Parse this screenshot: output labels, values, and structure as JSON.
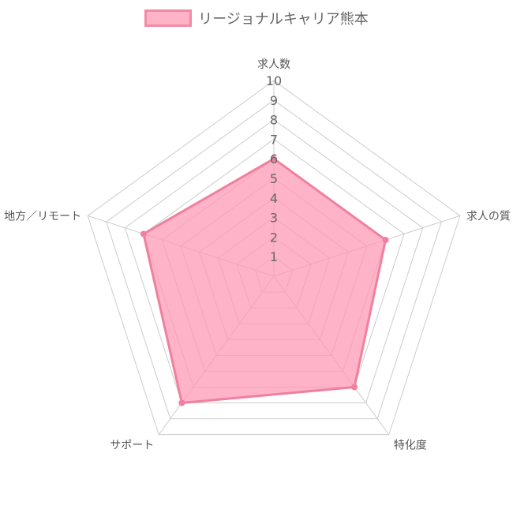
{
  "chart_data": {
    "type": "radar",
    "series": [
      {
        "name": "リージョナルキャリア熊本",
        "values": [
          6,
          6,
          7,
          8,
          7
        ]
      }
    ],
    "categories": [
      "求人数",
      "求人の質",
      "特化度",
      "サポート",
      "地方／リモート"
    ],
    "r_ticks": [
      "1",
      "2",
      "3",
      "4",
      "5",
      "6",
      "7",
      "8",
      "9",
      "10"
    ],
    "r_range": [
      0,
      10
    ],
    "legend_position": "top"
  },
  "colors": {
    "series_fill": "#ff9ab5",
    "series_stroke": "#f0809e",
    "grid": "#cccccc",
    "label_text": "#555555",
    "tick_text": "#666666"
  }
}
